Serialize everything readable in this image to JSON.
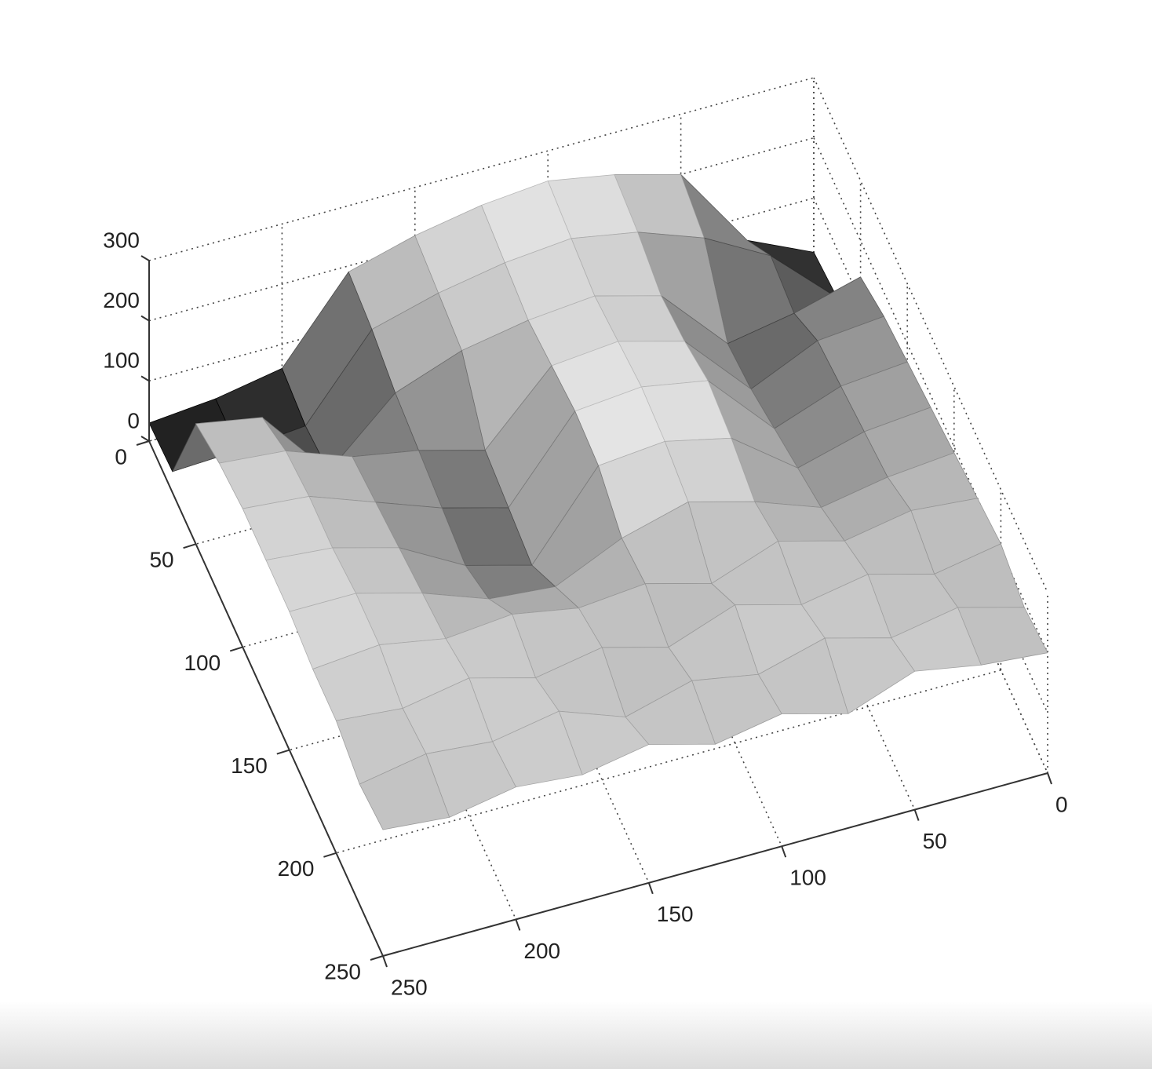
{
  "chart_data": {
    "type": "surface",
    "colormap": "gray",
    "grid": true,
    "x": [
      0,
      25,
      50,
      75,
      100,
      125,
      150,
      175,
      200,
      225,
      250
    ],
    "y": [
      0,
      25,
      50,
      75,
      100,
      125,
      150,
      175,
      200,
      225,
      250
    ],
    "z": [
      [
        10,
        60,
        200,
        230,
        250,
        240,
        220,
        190,
        60,
        40,
        30
      ],
      [
        20,
        120,
        180,
        220,
        240,
        230,
        210,
        180,
        50,
        40,
        35
      ],
      [
        140,
        110,
        90,
        200,
        230,
        220,
        200,
        160,
        60,
        180,
        200
      ],
      [
        160,
        150,
        100,
        210,
        240,
        230,
        120,
        150,
        170,
        210,
        220
      ],
      [
        170,
        160,
        120,
        230,
        250,
        240,
        110,
        140,
        180,
        220,
        230
      ],
      [
        180,
        170,
        140,
        220,
        245,
        235,
        100,
        130,
        190,
        220,
        230
      ],
      [
        190,
        180,
        160,
        200,
        230,
        200,
        150,
        160,
        200,
        230,
        230
      ],
      [
        200,
        210,
        190,
        220,
        180,
        210,
        200,
        220,
        210,
        230,
        220
      ],
      [
        210,
        190,
        220,
        200,
        230,
        190,
        220,
        200,
        230,
        210,
        220
      ],
      [
        190,
        220,
        200,
        230,
        200,
        220,
        190,
        230,
        210,
        220,
        200
      ],
      [
        200,
        210,
        230,
        190,
        220,
        200,
        230,
        210,
        220,
        200,
        210
      ]
    ],
    "xlim": [
      0,
      250
    ],
    "ylim": [
      0,
      250
    ],
    "zlim": [
      0,
      300
    ],
    "xticks": [
      0,
      50,
      100,
      150,
      200,
      250
    ],
    "yticks": [
      0,
      50,
      100,
      150,
      200,
      250
    ],
    "zticks": [
      0,
      100,
      200,
      300
    ]
  }
}
